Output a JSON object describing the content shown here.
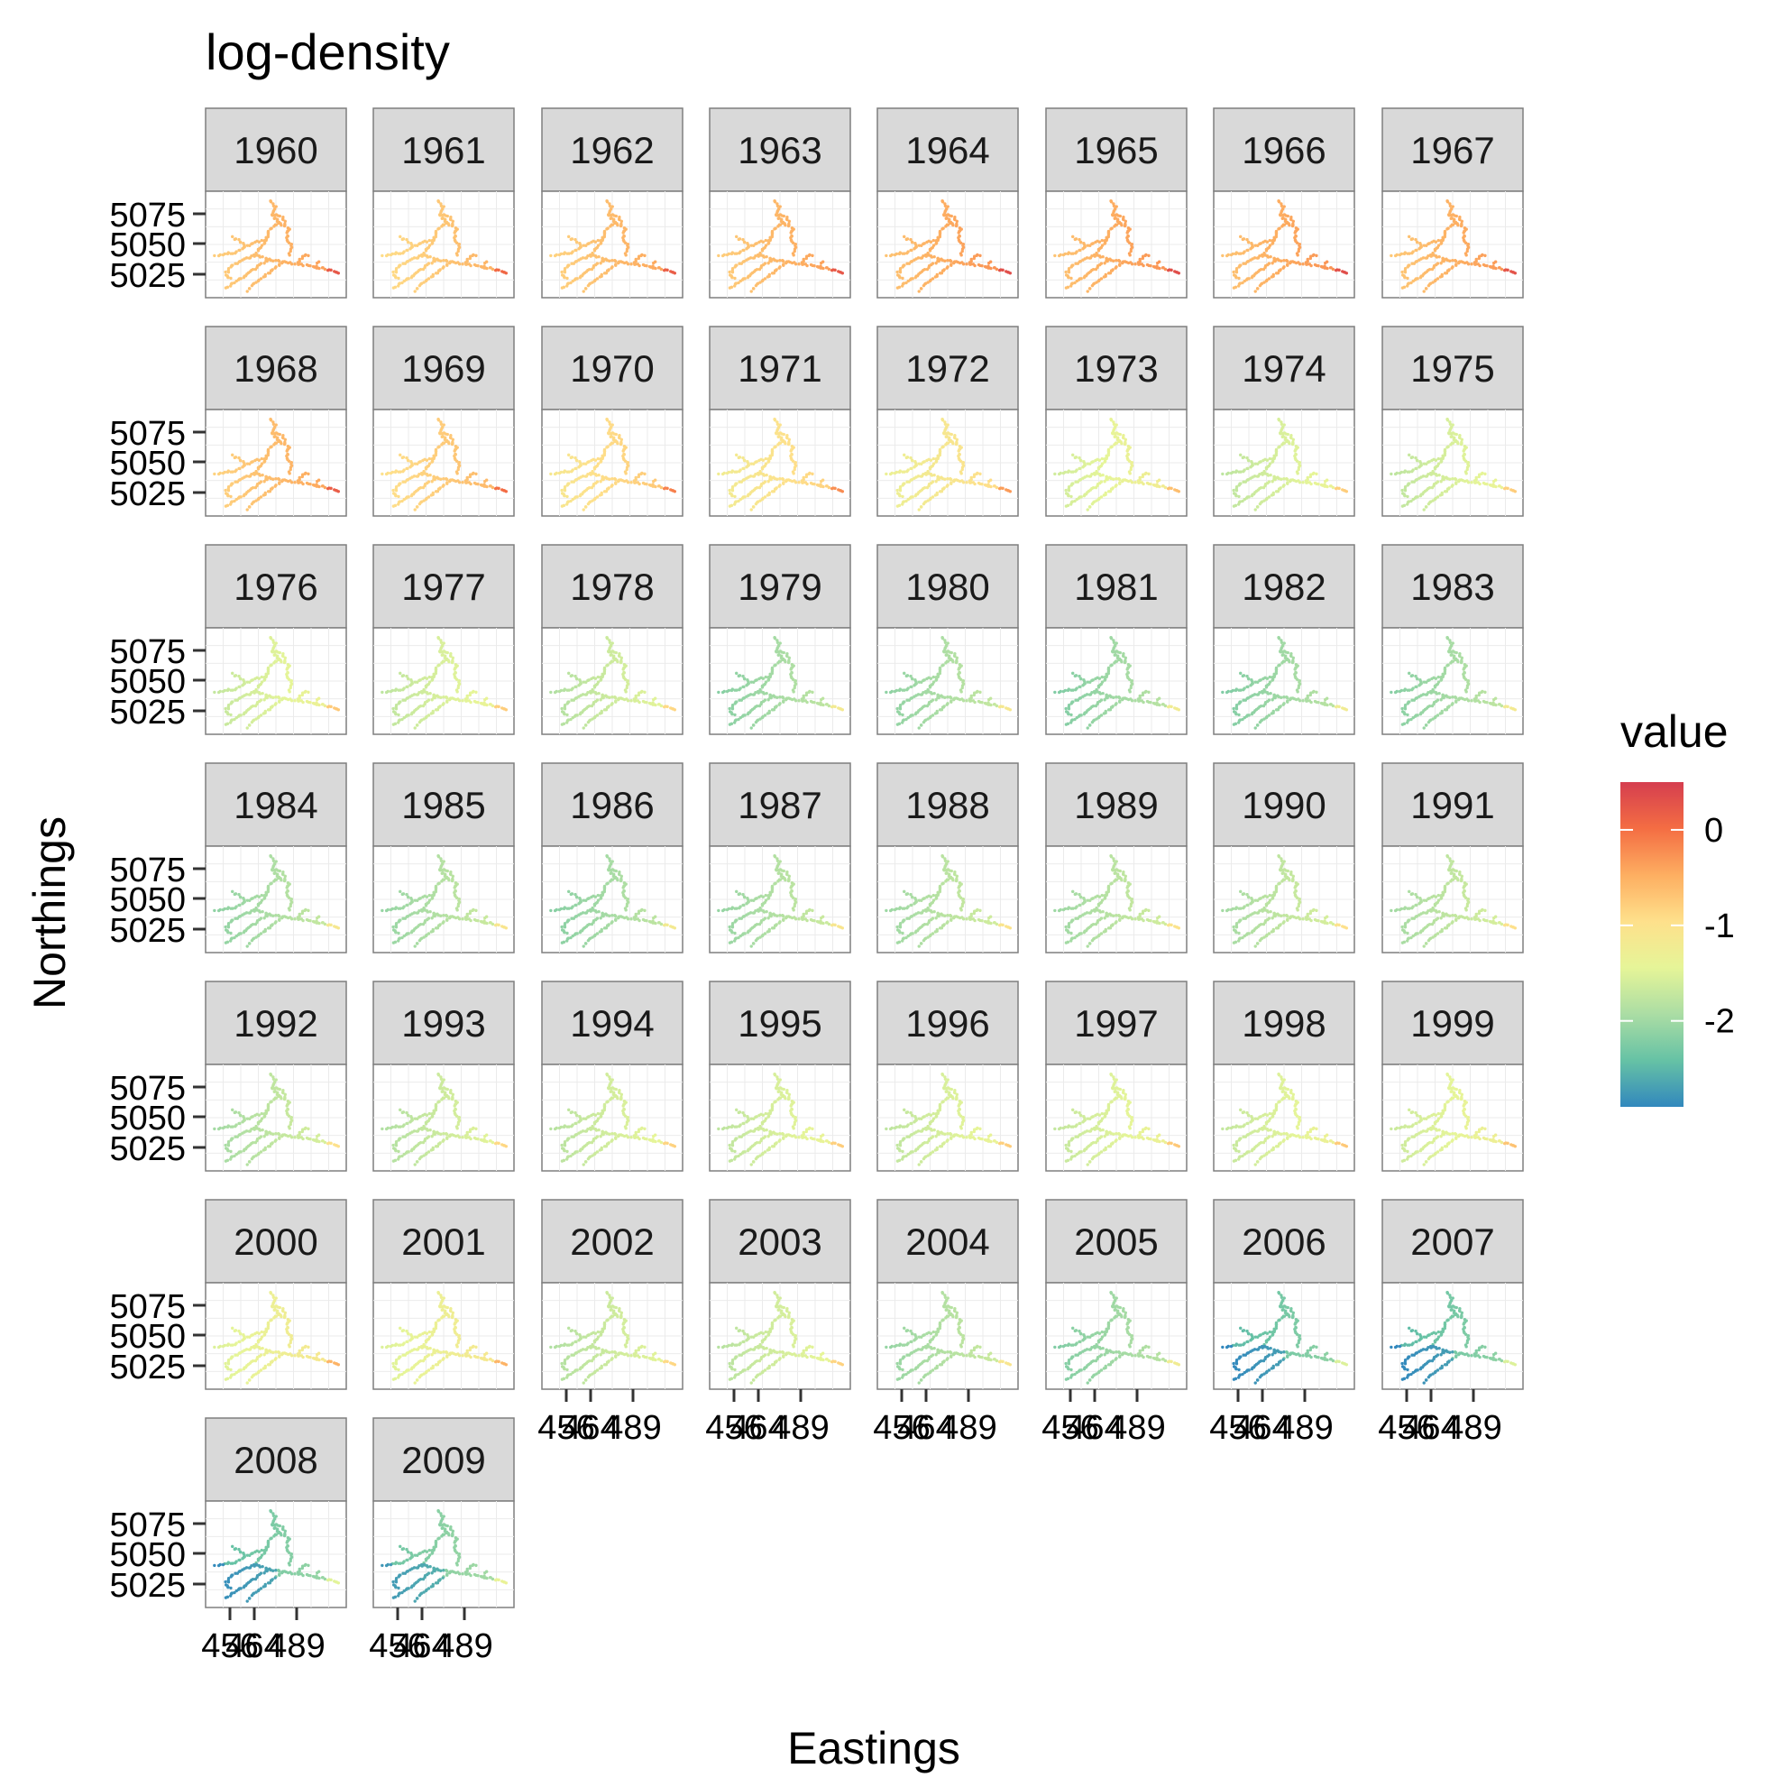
{
  "chart_data": {
    "type": "scatter",
    "title": "log-density",
    "xlabel": "Eastings",
    "ylabel": "Northings",
    "panels": [
      {
        "year": "1960",
        "mean": -0.55
      },
      {
        "year": "1961",
        "mean": -0.7
      },
      {
        "year": "1962",
        "mean": -0.6
      },
      {
        "year": "1963",
        "mean": -0.55
      },
      {
        "year": "1964",
        "mean": -0.45
      },
      {
        "year": "1965",
        "mean": -0.45
      },
      {
        "year": "1966",
        "mean": -0.45
      },
      {
        "year": "1967",
        "mean": -0.5
      },
      {
        "year": "1968",
        "mean": -0.6
      },
      {
        "year": "1969",
        "mean": -0.75
      },
      {
        "year": "1970",
        "mean": -0.9
      },
      {
        "year": "1971",
        "mean": -1.0
      },
      {
        "year": "1972",
        "mean": -1.1
      },
      {
        "year": "1973",
        "mean": -1.4
      },
      {
        "year": "1974",
        "mean": -1.55
      },
      {
        "year": "1975",
        "mean": -1.55
      },
      {
        "year": "1976",
        "mean": -1.5
      },
      {
        "year": "1977",
        "mean": -1.55
      },
      {
        "year": "1978",
        "mean": -1.65
      },
      {
        "year": "1979",
        "mean": -1.95
      },
      {
        "year": "1980",
        "mean": -1.9
      },
      {
        "year": "1981",
        "mean": -2.0
      },
      {
        "year": "1982",
        "mean": -2.0
      },
      {
        "year": "1983",
        "mean": -1.95
      },
      {
        "year": "1984",
        "mean": -1.9
      },
      {
        "year": "1985",
        "mean": -1.85
      },
      {
        "year": "1986",
        "mean": -1.95
      },
      {
        "year": "1987",
        "mean": -1.85
      },
      {
        "year": "1988",
        "mean": -1.8
      },
      {
        "year": "1989",
        "mean": -1.8
      },
      {
        "year": "1990",
        "mean": -1.75
      },
      {
        "year": "1991",
        "mean": -1.75
      },
      {
        "year": "1992",
        "mean": -1.75
      },
      {
        "year": "1993",
        "mean": -1.65
      },
      {
        "year": "1994",
        "mean": -1.6
      },
      {
        "year": "1995",
        "mean": -1.55
      },
      {
        "year": "1996",
        "mean": -1.55
      },
      {
        "year": "1997",
        "mean": -1.5
      },
      {
        "year": "1998",
        "mean": -1.5
      },
      {
        "year": "1999",
        "mean": -1.45
      },
      {
        "year": "2000",
        "mean": -1.3
      },
      {
        "year": "2001",
        "mean": -1.3
      },
      {
        "year": "2002",
        "mean": -1.65
      },
      {
        "year": "2003",
        "mean": -1.6
      },
      {
        "year": "2004",
        "mean": -1.85
      },
      {
        "year": "2005",
        "mean": -2.0
      },
      {
        "year": "2006",
        "mean": -2.3
      },
      {
        "year": "2007",
        "mean": -2.3
      },
      {
        "year": "2008",
        "mean": -2.25
      },
      {
        "year": "2009",
        "mean": -2.15
      }
    ],
    "y_ticks": [
      "5075",
      "5050",
      "5025"
    ],
    "x_ticks": [
      "456",
      "464",
      "489"
    ],
    "legend": {
      "title": "value",
      "ticks": [
        "0",
        "-1",
        "-2"
      ],
      "range": [
        -2.9,
        0.5
      ],
      "position": "right"
    },
    "colors": [
      "#3288bd",
      "#66c2a5",
      "#abdda4",
      "#e6f598",
      "#fee08b",
      "#fdae61",
      "#f46d43",
      "#d53e4f"
    ]
  }
}
